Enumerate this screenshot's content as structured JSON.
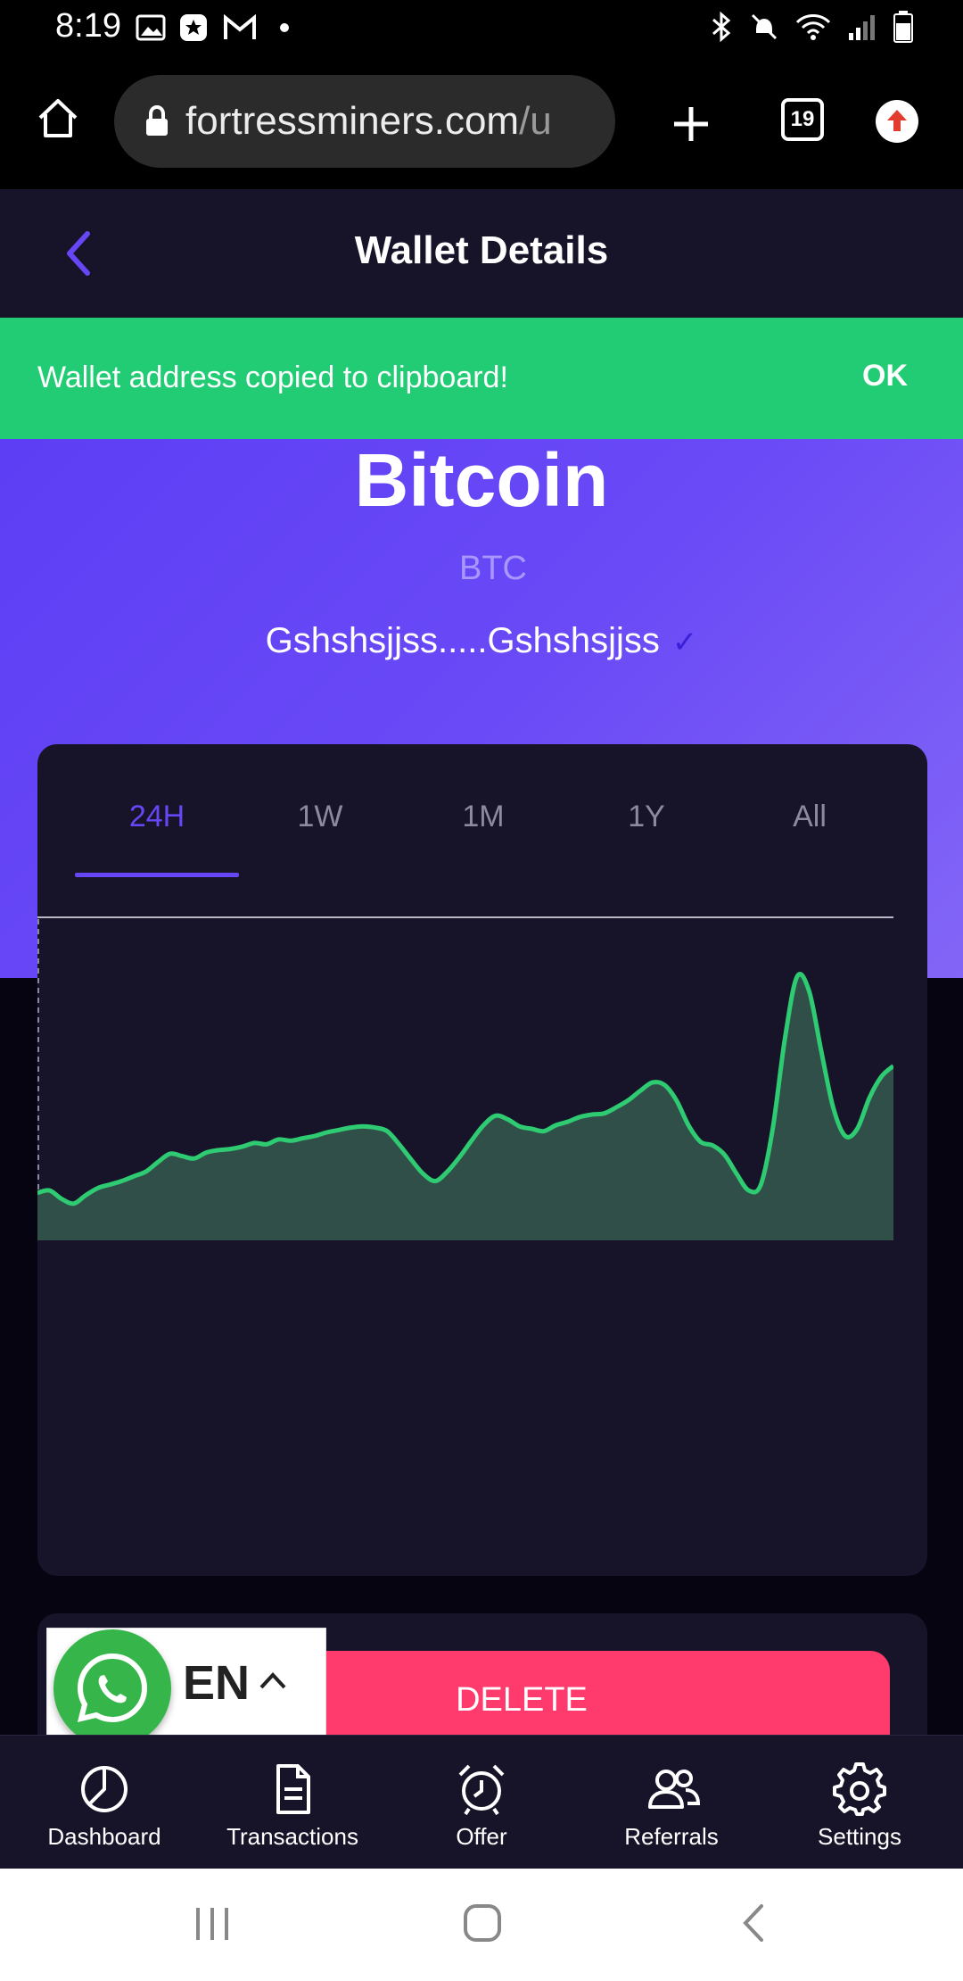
{
  "status_bar": {
    "time": "8:19"
  },
  "browser": {
    "url_main": "fortressminers.com",
    "url_rest": "/u",
    "tab_count": "19"
  },
  "header": {
    "title": "Wallet Details"
  },
  "toast": {
    "message": "Wallet address copied to clipboard!",
    "action": "OK"
  },
  "coin": {
    "name": "Bitcoin",
    "symbol": "BTC",
    "address": "Gshshsjjss.....Gshshsjjss"
  },
  "chart": {
    "tabs": [
      "24H",
      "1W",
      "1M",
      "1Y",
      "All"
    ],
    "active_tab": "24H",
    "line_color": "#2ecb72",
    "fill_color": "#2f4f48"
  },
  "chart_data": {
    "type": "area",
    "values": [
      40,
      42,
      35,
      31,
      38,
      44,
      47,
      50,
      54,
      58,
      66,
      73,
      71,
      69,
      74,
      76,
      77,
      79,
      82,
      81,
      85,
      84,
      86,
      88,
      91,
      93,
      95,
      96,
      95,
      92,
      81,
      68,
      56,
      50,
      58,
      70,
      84,
      97,
      105,
      102,
      96,
      94,
      92,
      97,
      100,
      104,
      106,
      107,
      112,
      118,
      126,
      133,
      131,
      118,
      97,
      83,
      80,
      72,
      56,
      42,
      47,
      95,
      170,
      222,
      210,
      160,
      112,
      88,
      94,
      120,
      138,
      147
    ]
  },
  "actions": {
    "delete_label": "DELETE"
  },
  "language": {
    "code": "EN"
  },
  "bottom_nav": {
    "items": [
      {
        "label": "Dashboard"
      },
      {
        "label": "Transactions"
      },
      {
        "label": "Offer"
      },
      {
        "label": "Referrals"
      },
      {
        "label": "Settings"
      }
    ]
  },
  "colors": {
    "accent": "#6746f5",
    "toast": "#22cc74",
    "delete": "#ff3a6d",
    "panel": "#171328"
  }
}
